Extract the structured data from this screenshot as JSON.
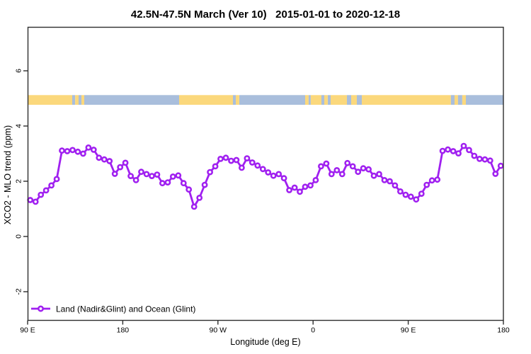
{
  "title": "42.5N-47.5N March (Ver 10)   2015-01-01 to 2020-12-18",
  "legend": {
    "label": "Land (Nadir&Glint) and Ocean (Glint)"
  },
  "colors": {
    "series": "#A020F0",
    "land": "#FBD87C",
    "ocean": "#A9BEDC",
    "axis": "#2e2e2e",
    "text": "#000000"
  },
  "chart_data": {
    "type": "line",
    "title": "42.5N-47.5N March (Ver 10)   2015-01-01 to 2020-12-18",
    "xlabel": "Longitude (deg E)",
    "ylabel": "XCO2 - MLO trend (ppm)",
    "legend_entries": [
      "Land (Nadir&Glint) and Ocean (Glint)"
    ],
    "legend_position": "bottom-left",
    "grid": false,
    "x_axis_note": "longitude wraps eastward from 90E through 180, 90W, 0, 90E to 180 (450 deg span)",
    "x_span_deg": 450,
    "x_ticks": [
      {
        "label": "90 E",
        "offset_deg": 0
      },
      {
        "label": "180",
        "offset_deg": 90
      },
      {
        "label": "90 W",
        "offset_deg": 180
      },
      {
        "label": "0",
        "offset_deg": 270
      },
      {
        "label": "90 E",
        "offset_deg": 360
      },
      {
        "label": "180",
        "offset_deg": 450
      }
    ],
    "y_ticks": [
      {
        "label": "-2",
        "value": -2
      },
      {
        "label": "0",
        "value": 0
      },
      {
        "label": "2",
        "value": 2
      },
      {
        "label": "4",
        "value": 4
      },
      {
        "label": "6",
        "value": 6
      }
    ],
    "ylim": [
      -3.1,
      7.6
    ],
    "x_start_offset_deg": 2.5,
    "x_step_deg": 5,
    "series": [
      {
        "name": "Land (Nadir&Glint) and Ocean (Glint)",
        "values": [
          1.32,
          1.26,
          1.51,
          1.67,
          1.85,
          2.08,
          3.11,
          3.09,
          3.13,
          3.07,
          3.0,
          3.22,
          3.14,
          2.85,
          2.79,
          2.73,
          2.27,
          2.51,
          2.67,
          2.19,
          2.04,
          2.34,
          2.26,
          2.19,
          2.24,
          1.93,
          1.96,
          2.17,
          2.21,
          1.93,
          1.7,
          1.08,
          1.4,
          1.87,
          2.33,
          2.54,
          2.81,
          2.85,
          2.74,
          2.77,
          2.49,
          2.83,
          2.68,
          2.57,
          2.44,
          2.32,
          2.2,
          2.26,
          2.11,
          1.68,
          1.77,
          1.62,
          1.8,
          1.85,
          2.04,
          2.54,
          2.64,
          2.26,
          2.4,
          2.26,
          2.66,
          2.54,
          2.34,
          2.47,
          2.43,
          2.2,
          2.26,
          2.04,
          2.0,
          1.85,
          1.63,
          1.51,
          1.44,
          1.34,
          1.55,
          1.87,
          2.03,
          2.06,
          3.1,
          3.15,
          3.09,
          3.01,
          3.28,
          3.13,
          2.92,
          2.81,
          2.79,
          2.75,
          2.27,
          2.56
        ]
      }
    ],
    "surface_band": {
      "description": "land(yellow)/ocean(blue) strip drawn across the plot",
      "top_ppm": 5.12,
      "bottom_ppm": 4.77,
      "segments": [
        {
          "from": 0,
          "to": 42.2,
          "surface": "land"
        },
        {
          "from": 42.2,
          "to": 44.9,
          "surface": "ocean"
        },
        {
          "from": 44.9,
          "to": 48.2,
          "surface": "land"
        },
        {
          "from": 48.2,
          "to": 50.9,
          "surface": "ocean"
        },
        {
          "from": 50.9,
          "to": 53.6,
          "surface": "land"
        },
        {
          "from": 53.6,
          "to": 143.3,
          "surface": "ocean"
        },
        {
          "from": 143.3,
          "to": 194.2,
          "surface": "land"
        },
        {
          "from": 194.2,
          "to": 196.9,
          "surface": "ocean"
        },
        {
          "from": 196.9,
          "to": 200.2,
          "surface": "land"
        },
        {
          "from": 200.2,
          "to": 262.5,
          "surface": "ocean"
        },
        {
          "from": 262.5,
          "to": 265.8,
          "surface": "land"
        },
        {
          "from": 265.8,
          "to": 267.8,
          "surface": "ocean"
        },
        {
          "from": 267.8,
          "to": 277.9,
          "surface": "land"
        },
        {
          "from": 277.9,
          "to": 280.6,
          "surface": "ocean"
        },
        {
          "from": 280.6,
          "to": 283.9,
          "surface": "land"
        },
        {
          "from": 283.9,
          "to": 286.6,
          "surface": "ocean"
        },
        {
          "from": 286.6,
          "to": 302.0,
          "surface": "land"
        },
        {
          "from": 302.0,
          "to": 306.0,
          "surface": "ocean"
        },
        {
          "from": 306.0,
          "to": 311.4,
          "surface": "land"
        },
        {
          "from": 311.4,
          "to": 316.1,
          "surface": "ocean"
        },
        {
          "from": 316.1,
          "to": 400.4,
          "surface": "land"
        },
        {
          "from": 400.4,
          "to": 403.8,
          "surface": "ocean"
        },
        {
          "from": 403.8,
          "to": 407.1,
          "surface": "land"
        },
        {
          "from": 407.1,
          "to": 411.1,
          "surface": "ocean"
        },
        {
          "from": 411.1,
          "to": 414.5,
          "surface": "land"
        },
        {
          "from": 414.5,
          "to": 450,
          "surface": "ocean"
        }
      ]
    }
  }
}
